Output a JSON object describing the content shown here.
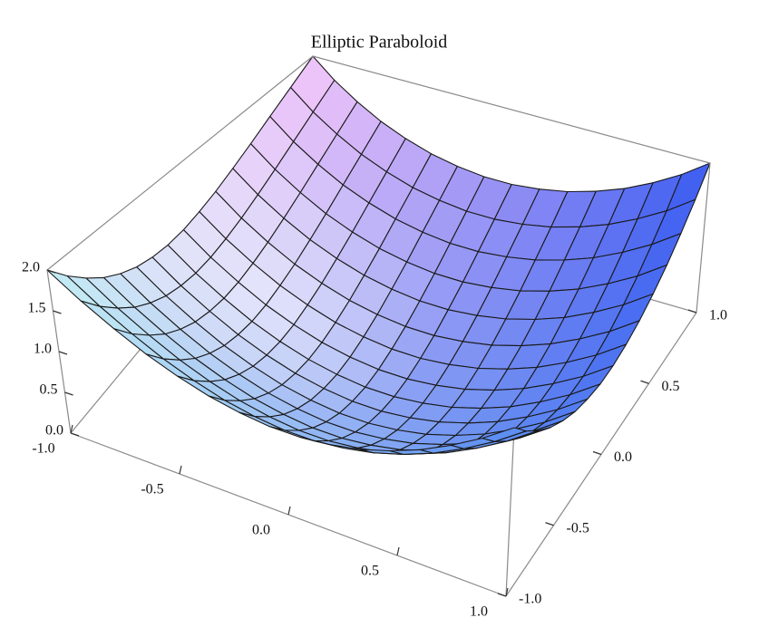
{
  "chart_data": {
    "type": "surface3d",
    "title": "Elliptic Paraboloid",
    "x": [
      -1,
      -0.867,
      -0.733,
      -0.6,
      -0.467,
      -0.333,
      -0.2,
      -0.067,
      0.067,
      0.2,
      0.333,
      0.467,
      0.6,
      0.733,
      0.867,
      1
    ],
    "y": [
      -1,
      -0.867,
      -0.733,
      -0.6,
      -0.467,
      -0.333,
      -0.2,
      -0.067,
      0.067,
      0.2,
      0.333,
      0.467,
      0.6,
      0.733,
      0.867,
      1
    ],
    "z": [
      [
        2,
        1.75,
        1.54,
        1.36,
        1.22,
        1.11,
        1.04,
        1,
        1,
        1.04,
        1.11,
        1.22,
        1.36,
        1.54,
        1.75,
        2
      ],
      [
        1.75,
        1.5,
        1.29,
        1.11,
        0.97,
        0.86,
        0.79,
        0.75,
        0.75,
        0.79,
        0.86,
        0.97,
        1.11,
        1.29,
        1.5,
        1.75
      ],
      [
        1.54,
        1.29,
        1.08,
        0.9,
        0.76,
        0.65,
        0.58,
        0.54,
        0.54,
        0.58,
        0.65,
        0.76,
        0.9,
        1.08,
        1.29,
        1.54
      ],
      [
        1.36,
        1.11,
        0.9,
        0.72,
        0.58,
        0.47,
        0.4,
        0.36,
        0.36,
        0.4,
        0.47,
        0.58,
        0.72,
        0.9,
        1.11,
        1.36
      ],
      [
        1.22,
        0.97,
        0.76,
        0.58,
        0.44,
        0.33,
        0.26,
        0.22,
        0.22,
        0.26,
        0.33,
        0.44,
        0.58,
        0.76,
        0.97,
        1.22
      ],
      [
        1.11,
        0.86,
        0.65,
        0.47,
        0.33,
        0.22,
        0.15,
        0.11,
        0.11,
        0.15,
        0.22,
        0.33,
        0.47,
        0.65,
        0.86,
        1.11
      ],
      [
        1.04,
        0.79,
        0.58,
        0.4,
        0.26,
        0.15,
        0.08,
        0.04,
        0.04,
        0.08,
        0.15,
        0.26,
        0.4,
        0.58,
        0.79,
        1.04
      ],
      [
        1,
        0.75,
        0.54,
        0.36,
        0.22,
        0.11,
        0.04,
        0,
        0,
        0.04,
        0.11,
        0.22,
        0.36,
        0.54,
        0.75,
        1
      ],
      [
        1,
        0.75,
        0.54,
        0.36,
        0.22,
        0.11,
        0.04,
        0,
        0,
        0.04,
        0.11,
        0.22,
        0.36,
        0.54,
        0.75,
        1
      ],
      [
        1.04,
        0.79,
        0.58,
        0.4,
        0.26,
        0.15,
        0.08,
        0.04,
        0.04,
        0.08,
        0.15,
        0.26,
        0.4,
        0.58,
        0.79,
        1.04
      ],
      [
        1.11,
        0.86,
        0.65,
        0.47,
        0.33,
        0.22,
        0.15,
        0.11,
        0.11,
        0.15,
        0.22,
        0.33,
        0.47,
        0.65,
        0.86,
        1.11
      ],
      [
        1.22,
        0.97,
        0.76,
        0.58,
        0.44,
        0.33,
        0.26,
        0.22,
        0.22,
        0.26,
        0.33,
        0.44,
        0.58,
        0.76,
        0.97,
        1.22
      ],
      [
        1.36,
        1.11,
        0.9,
        0.72,
        0.58,
        0.47,
        0.4,
        0.36,
        0.36,
        0.4,
        0.47,
        0.58,
        0.72,
        0.9,
        1.11,
        1.36
      ],
      [
        1.54,
        1.29,
        1.08,
        0.9,
        0.76,
        0.65,
        0.58,
        0.54,
        0.54,
        0.58,
        0.65,
        0.76,
        0.9,
        1.08,
        1.29,
        1.54
      ],
      [
        1.75,
        1.5,
        1.29,
        1.11,
        0.97,
        0.86,
        0.79,
        0.75,
        0.75,
        0.79,
        0.86,
        0.97,
        1.11,
        1.29,
        1.5,
        1.75
      ],
      [
        2,
        1.75,
        1.54,
        1.36,
        1.22,
        1.11,
        1.04,
        1,
        1,
        1.04,
        1.11,
        1.22,
        1.36,
        1.54,
        1.75,
        2
      ]
    ],
    "xlim": [
      -1,
      1
    ],
    "ylim": [
      -1,
      1
    ],
    "zlim": [
      0,
      2
    ],
    "xticks": [
      {
        "value": -1,
        "label": "-1.0"
      },
      {
        "value": -0.5,
        "label": "-0.5"
      },
      {
        "value": 0,
        "label": "0.0"
      },
      {
        "value": 0.5,
        "label": "0.5"
      },
      {
        "value": 1,
        "label": "1.0"
      }
    ],
    "yticks": [
      {
        "value": -1,
        "label": "-1.0"
      },
      {
        "value": -0.5,
        "label": "-0.5"
      },
      {
        "value": 0,
        "label": "0.0"
      },
      {
        "value": 0.5,
        "label": "0.5"
      },
      {
        "value": 1,
        "label": "1.0"
      }
    ],
    "zticks": [
      {
        "value": 0,
        "label": "0.0"
      },
      {
        "value": 0.5,
        "label": "0.5"
      },
      {
        "value": 1,
        "label": "1.0"
      },
      {
        "value": 1.5,
        "label": "1.5"
      },
      {
        "value": 2,
        "label": "2.0"
      }
    ],
    "corner_colors": [
      "#c4eef4",
      "#5a8cf2",
      "#3c5cf0",
      "#f4c6fa"
    ],
    "mesh_color": "#1a1a1a",
    "box": true
  }
}
